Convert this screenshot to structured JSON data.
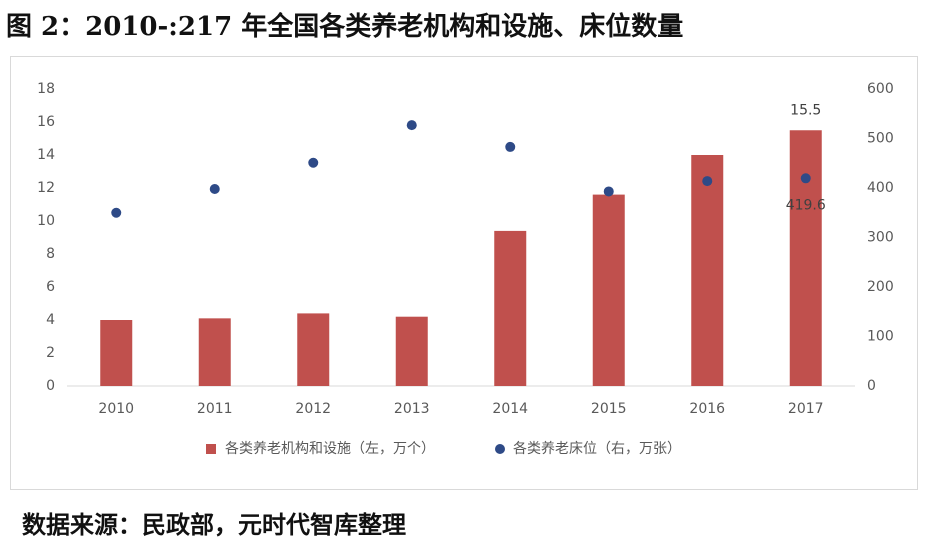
{
  "figure": {
    "title": "图 2：2010-:217 年全国各类养老机构和设施、床位数量",
    "source": "数据来源：民政部，元时代智库整理"
  },
  "chart_data": {
    "type": "bar",
    "categories": [
      "2010",
      "2011",
      "2012",
      "2013",
      "2014",
      "2015",
      "2016",
      "2017"
    ],
    "series": [
      {
        "name": "各类养老机构和设施（左，万个）",
        "type": "bar",
        "axis": "left",
        "color": "#c0504d",
        "values": [
          4.0,
          4.1,
          4.4,
          4.2,
          9.4,
          11.6,
          14.0,
          15.5
        ]
      },
      {
        "name": "各类养老床位（右，万张）",
        "type": "scatter",
        "axis": "right",
        "color": "#2e4a87",
        "values": [
          350,
          398,
          451,
          527,
          483,
          393,
          414,
          419.6
        ]
      }
    ],
    "y_left": {
      "min": 0,
      "max": 18,
      "ticks": [
        0,
        2,
        4,
        6,
        8,
        10,
        12,
        14,
        16,
        18
      ]
    },
    "y_right": {
      "min": 0,
      "max": 600,
      "ticks": [
        0,
        100,
        200,
        300,
        400,
        500,
        600
      ]
    },
    "data_labels": [
      {
        "series": 0,
        "index": 7,
        "text": "15.5"
      },
      {
        "series": 1,
        "index": 7,
        "text": "419.6"
      }
    ],
    "grid": false,
    "legend_position": "bottom"
  }
}
